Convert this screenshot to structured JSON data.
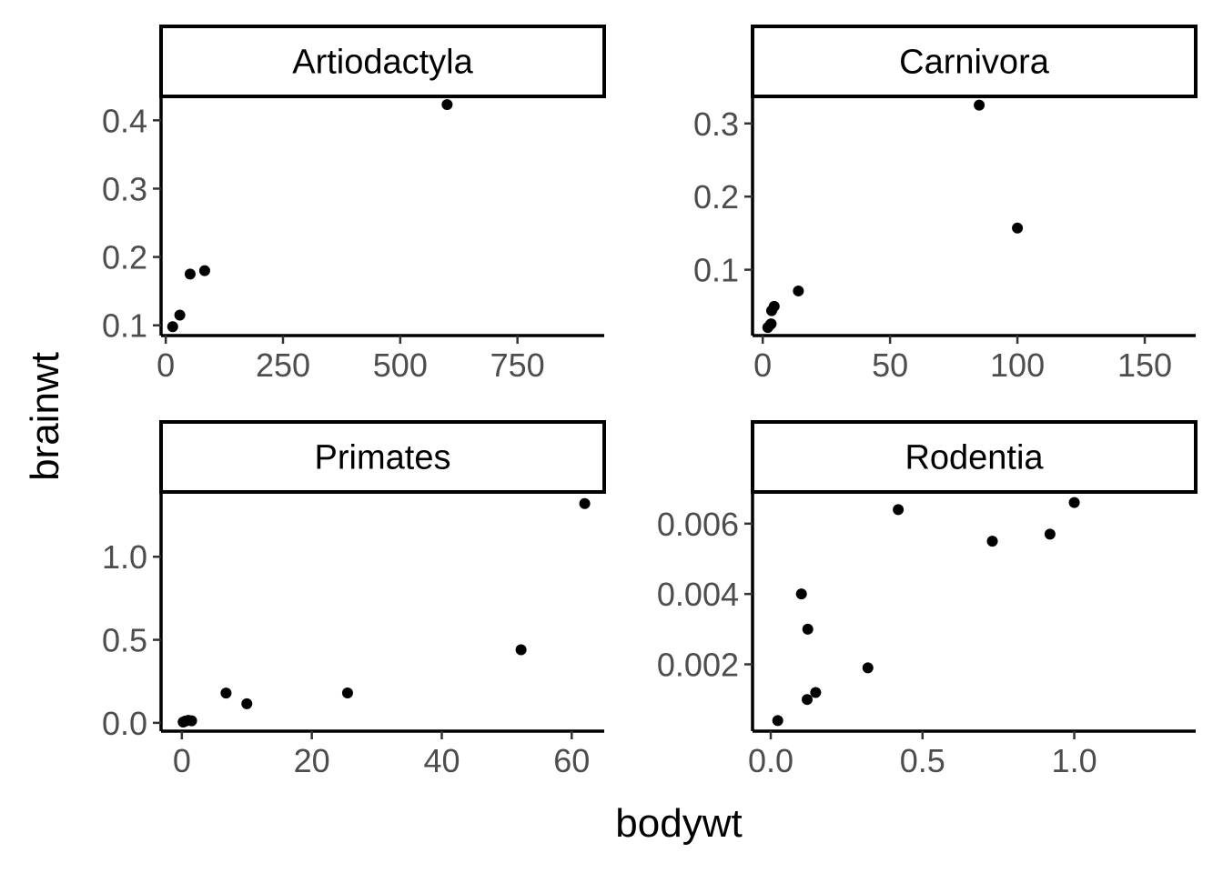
{
  "chart_data": {
    "type": "scatter",
    "xlabel": "bodywt",
    "ylabel": "brainwt",
    "grid": false,
    "legend": "none",
    "point_color": "#000000",
    "facets": [
      {
        "name": "Artiodactyla",
        "xlim": [
          -10,
          935
        ],
        "ylim": [
          0.085,
          0.435
        ],
        "xticks": [
          0,
          250,
          500,
          750
        ],
        "xtick_labels": [
          "0",
          "250",
          "500",
          "750"
        ],
        "yticks": [
          0.1,
          0.2,
          0.3,
          0.4
        ],
        "ytick_labels": [
          "0.1",
          "0.2",
          "0.3",
          "0.4"
        ],
        "points": [
          {
            "x": 14.8,
            "y": 0.098
          },
          {
            "x": 30,
            "y": 0.115
          },
          {
            "x": 52,
            "y": 0.175
          },
          {
            "x": 83,
            "y": 0.18
          },
          {
            "x": 600,
            "y": 0.423
          }
        ]
      },
      {
        "name": "Carnivora",
        "xlim": [
          -4,
          170
        ],
        "ylim": [
          0.01,
          0.337
        ],
        "xticks": [
          0,
          50,
          100,
          150
        ],
        "xtick_labels": [
          "0",
          "50",
          "100",
          "150"
        ],
        "yticks": [
          0.1,
          0.2,
          0.3
        ],
        "ytick_labels": [
          "0.1",
          "0.2",
          "0.3"
        ],
        "points": [
          {
            "x": 2.0,
            "y": 0.021
          },
          {
            "x": 3.0,
            "y": 0.025
          },
          {
            "x": 3.3,
            "y": 0.026
          },
          {
            "x": 3.5,
            "y": 0.044
          },
          {
            "x": 4.5,
            "y": 0.05
          },
          {
            "x": 14,
            "y": 0.071
          },
          {
            "x": 85,
            "y": 0.325
          },
          {
            "x": 100,
            "y": 0.157
          }
        ]
      },
      {
        "name": "Primates",
        "xlim": [
          -3.2,
          65
        ],
        "ylim": [
          -0.05,
          1.39
        ],
        "xticks": [
          0,
          20,
          40,
          60
        ],
        "xtick_labels": [
          "0",
          "20",
          "40",
          "60"
        ],
        "yticks": [
          0.0,
          0.5,
          1.0
        ],
        "ytick_labels": [
          "0.0",
          "0.5",
          "1.0"
        ],
        "points": [
          {
            "x": 0.2,
            "y": 0.005
          },
          {
            "x": 0.5,
            "y": 0.01
          },
          {
            "x": 1.0,
            "y": 0.015
          },
          {
            "x": 1.5,
            "y": 0.012
          },
          {
            "x": 6.8,
            "y": 0.179
          },
          {
            "x": 10,
            "y": 0.115
          },
          {
            "x": 25.5,
            "y": 0.18
          },
          {
            "x": 52.2,
            "y": 0.44
          },
          {
            "x": 62,
            "y": 1.32
          }
        ]
      },
      {
        "name": "Rodentia",
        "xlim": [
          -0.06,
          1.4
        ],
        "ylim": [
          0.0001,
          0.0069
        ],
        "xticks": [
          0.0,
          0.5,
          1.0
        ],
        "xtick_labels": [
          "0.0",
          "0.5",
          "1.0"
        ],
        "yticks": [
          0.002,
          0.004,
          0.006
        ],
        "ytick_labels": [
          "0.002",
          "0.004",
          "0.006"
        ],
        "points": [
          {
            "x": 0.023,
            "y": 0.0004
          },
          {
            "x": 0.101,
            "y": 0.004
          },
          {
            "x": 0.12,
            "y": 0.001
          },
          {
            "x": 0.122,
            "y": 0.003
          },
          {
            "x": 0.148,
            "y": 0.0012
          },
          {
            "x": 0.32,
            "y": 0.0019
          },
          {
            "x": 0.42,
            "y": 0.0064
          },
          {
            "x": 0.73,
            "y": 0.0055
          },
          {
            "x": 0.92,
            "y": 0.0057
          },
          {
            "x": 1.0,
            "y": 0.0066
          }
        ]
      }
    ]
  }
}
